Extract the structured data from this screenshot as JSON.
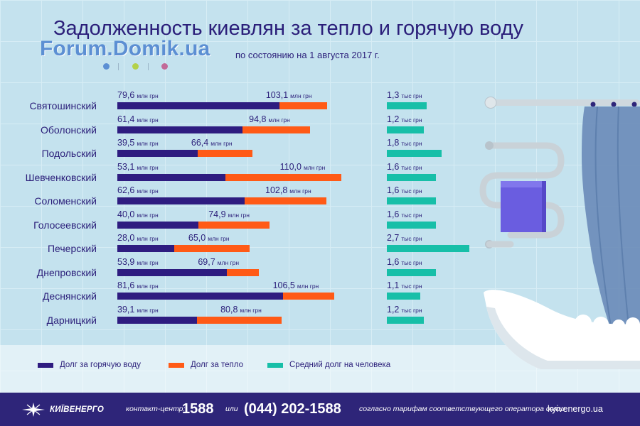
{
  "title": "Задолженность киевлян за тепло и горячую воду",
  "watermark": "Forum.Domik.ua",
  "subtitle": "по состоянию на 1 августа 2017 г.",
  "colors": {
    "hot_water": "#2e1c80",
    "heating": "#ff5a16",
    "per_person": "#17bfa8",
    "text": "#2b1f7a",
    "footer_bg": "#2e2579",
    "dots": [
      "#5c8fd3",
      "#b3d14a",
      "#c26a98"
    ]
  },
  "chart_data": {
    "type": "bar",
    "orientation": "horizontal",
    "title": "Задолженность киевлян за тепло и горячую воду",
    "subtitle": "по состоянию на 1 августа 2017 г.",
    "categories": [
      "Святошинский",
      "Оболонский",
      "Подольский",
      "Шевченковский",
      "Соломенский",
      "Голосеевский",
      "Печерский",
      "Днепровский",
      "Деснянский",
      "Дарницкий"
    ],
    "series": [
      {
        "name": "Долг за горячую воду",
        "unit": "млн грн",
        "values": [
          79.6,
          61.4,
          39.5,
          53.1,
          62.6,
          40.0,
          28.0,
          53.9,
          81.6,
          39.1
        ],
        "labels": [
          "79,6",
          "61,4",
          "39,5",
          "53,1",
          "62,6",
          "40,0",
          "28,0",
          "53,9",
          "81,6",
          "39,1"
        ]
      },
      {
        "name": "Долг за тепло",
        "unit": "млн грн",
        "values": [
          103.1,
          94.8,
          66.4,
          110.0,
          102.8,
          74.9,
          65.0,
          69.7,
          106.5,
          80.8
        ],
        "labels": [
          "103,1",
          "94,8",
          "66,4",
          "110,0",
          "102,8",
          "74,9",
          "65,0",
          "69,7",
          "106,5",
          "80,8"
        ]
      },
      {
        "name": "Средний долг на человека",
        "unit": "тыс грн",
        "values": [
          1.3,
          1.2,
          1.8,
          1.6,
          1.6,
          1.6,
          2.7,
          1.6,
          1.1,
          1.2
        ],
        "labels": [
          "1,3",
          "1,2",
          "1,8",
          "1,6",
          "1,6",
          "1,6",
          "2,7",
          "1,6",
          "1,1",
          "1,2"
        ]
      }
    ],
    "legend": "bottom",
    "grid": false
  },
  "footer": {
    "logo": "КИЇВЕНЕРГО",
    "contact_label": "контакт-центр:",
    "phone_short": "1588",
    "or": "или",
    "phone_full": "(044) 202-1588",
    "tariff_note": "согласно тарифам соответствующего оператора связи",
    "site": "kyivenergo.ua"
  }
}
